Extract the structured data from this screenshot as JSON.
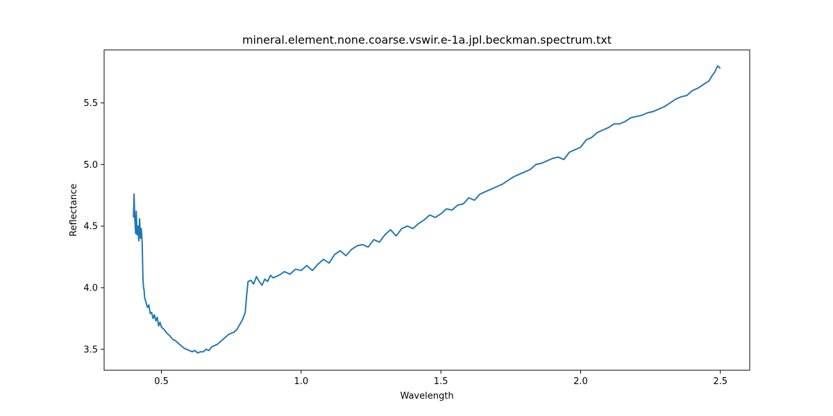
{
  "chart_data": {
    "type": "line",
    "title": "mineral.element.none.coarse.vswir.e-1a.jpl.beckman.spectrum.txt",
    "xlabel": "Wavelength",
    "ylabel": "Reflectance",
    "xlim": [
      0.295,
      2.605
    ],
    "ylim": [
      3.33,
      5.93
    ],
    "xticks": [
      0.5,
      1.0,
      1.5,
      2.0,
      2.5
    ],
    "xtick_labels": [
      "0.5",
      "1.0",
      "1.5",
      "2.0",
      "2.5"
    ],
    "yticks": [
      3.5,
      4.0,
      4.5,
      5.0,
      5.5
    ],
    "ytick_labels": [
      "3.5",
      "4.0",
      "4.5",
      "5.0",
      "5.5"
    ],
    "grid": false,
    "colors": {
      "line": "#1f77b4"
    },
    "series": [
      {
        "x": [
          0.4,
          0.402,
          0.405,
          0.408,
          0.41,
          0.413,
          0.416,
          0.419,
          0.422,
          0.425,
          0.428,
          0.431,
          0.434,
          0.436,
          0.438,
          0.44,
          0.445,
          0.45,
          0.455,
          0.46,
          0.465,
          0.47,
          0.475,
          0.48,
          0.485,
          0.49,
          0.495,
          0.5,
          0.51,
          0.52,
          0.53,
          0.54,
          0.55,
          0.56,
          0.57,
          0.58,
          0.59,
          0.6,
          0.61,
          0.62,
          0.63,
          0.64,
          0.65,
          0.66,
          0.67,
          0.68,
          0.69,
          0.7,
          0.71,
          0.72,
          0.73,
          0.74,
          0.75,
          0.76,
          0.77,
          0.78,
          0.79,
          0.8,
          0.805,
          0.81,
          0.82,
          0.83,
          0.84,
          0.85,
          0.86,
          0.87,
          0.88,
          0.89,
          0.9,
          0.92,
          0.94,
          0.96,
          0.98,
          1.0,
          1.02,
          1.04,
          1.06,
          1.08,
          1.1,
          1.12,
          1.14,
          1.16,
          1.18,
          1.2,
          1.22,
          1.24,
          1.26,
          1.28,
          1.3,
          1.32,
          1.34,
          1.36,
          1.38,
          1.4,
          1.42,
          1.44,
          1.46,
          1.48,
          1.5,
          1.52,
          1.54,
          1.56,
          1.58,
          1.6,
          1.62,
          1.64,
          1.66,
          1.68,
          1.7,
          1.72,
          1.74,
          1.76,
          1.78,
          1.8,
          1.82,
          1.84,
          1.86,
          1.88,
          1.9,
          1.92,
          1.94,
          1.96,
          1.98,
          2.0,
          2.02,
          2.04,
          2.06,
          2.08,
          2.1,
          2.12,
          2.14,
          2.16,
          2.18,
          2.2,
          2.22,
          2.24,
          2.26,
          2.28,
          2.3,
          2.32,
          2.34,
          2.36,
          2.38,
          2.4,
          2.42,
          2.44,
          2.46,
          2.47,
          2.48,
          2.49,
          2.5
        ],
        "values": [
          4.57,
          4.76,
          4.55,
          4.44,
          4.62,
          4.43,
          4.5,
          4.38,
          4.56,
          4.4,
          4.48,
          4.38,
          4.07,
          4.0,
          3.98,
          3.92,
          3.88,
          3.84,
          3.86,
          3.79,
          3.8,
          3.75,
          3.78,
          3.73,
          3.76,
          3.69,
          3.72,
          3.68,
          3.66,
          3.63,
          3.61,
          3.58,
          3.57,
          3.55,
          3.53,
          3.51,
          3.5,
          3.49,
          3.48,
          3.49,
          3.47,
          3.48,
          3.48,
          3.5,
          3.49,
          3.52,
          3.53,
          3.54,
          3.56,
          3.58,
          3.6,
          3.62,
          3.63,
          3.64,
          3.66,
          3.7,
          3.74,
          3.8,
          3.94,
          4.05,
          4.06,
          4.03,
          4.09,
          4.05,
          4.02,
          4.07,
          4.05,
          4.1,
          4.08,
          4.1,
          4.13,
          4.11,
          4.15,
          4.14,
          4.18,
          4.14,
          4.19,
          4.23,
          4.2,
          4.27,
          4.3,
          4.26,
          4.31,
          4.34,
          4.35,
          4.33,
          4.39,
          4.37,
          4.43,
          4.47,
          4.42,
          4.48,
          4.5,
          4.48,
          4.52,
          4.55,
          4.59,
          4.57,
          4.6,
          4.64,
          4.63,
          4.67,
          4.68,
          4.73,
          4.71,
          4.76,
          4.78,
          4.8,
          4.82,
          4.84,
          4.87,
          4.9,
          4.92,
          4.94,
          4.96,
          5.0,
          5.01,
          5.03,
          5.05,
          5.06,
          5.04,
          5.1,
          5.12,
          5.14,
          5.2,
          5.22,
          5.26,
          5.28,
          5.3,
          5.33,
          5.33,
          5.35,
          5.38,
          5.39,
          5.4,
          5.42,
          5.43,
          5.45,
          5.47,
          5.5,
          5.53,
          5.55,
          5.56,
          5.6,
          5.62,
          5.65,
          5.68,
          5.72,
          5.75,
          5.8,
          5.78
        ]
      }
    ]
  }
}
